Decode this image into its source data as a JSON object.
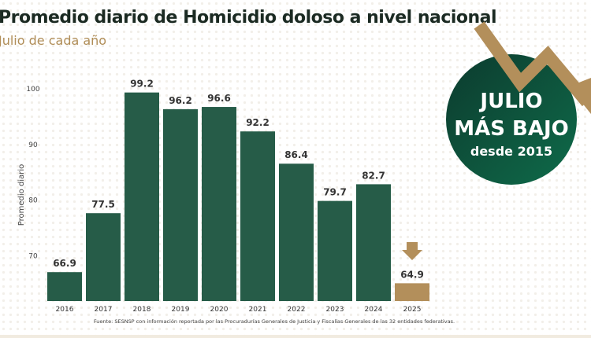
{
  "title": "Promedio diario de Homicidio doloso a nivel nacional",
  "subtitle": "Julio de cada año",
  "badge": {
    "line1": "JULIO",
    "line2": "MÁS BAJO",
    "line3": "desde 2015"
  },
  "source": "Fuente: SESNSP con información reportada por las Procuradurías Generales de Justicia y Fiscalías Generales de las 32 entidades federativas.",
  "colors": {
    "bar": "#265c48",
    "highlight": "#b38f5b",
    "badge": "#0f5a40"
  },
  "chart_data": {
    "type": "bar",
    "categories": [
      "2016",
      "2017",
      "2018",
      "2019",
      "2020",
      "2021",
      "2022",
      "2023",
      "2024",
      "2025"
    ],
    "values": [
      66.9,
      77.5,
      99.2,
      96.2,
      96.6,
      92.2,
      86.4,
      79.7,
      82.7,
      64.9
    ],
    "value_labels": [
      "66.9",
      "77.5",
      "99.2",
      "96.2",
      "96.6",
      "92.2",
      "86.4",
      "79.7",
      "82.7",
      "64.9"
    ],
    "ylabel": "Promedio diario",
    "yticks": [
      "70",
      "80",
      "90",
      "100"
    ],
    "ylim": [
      61.7,
      100
    ],
    "grid": false,
    "highlight": "2025"
  }
}
